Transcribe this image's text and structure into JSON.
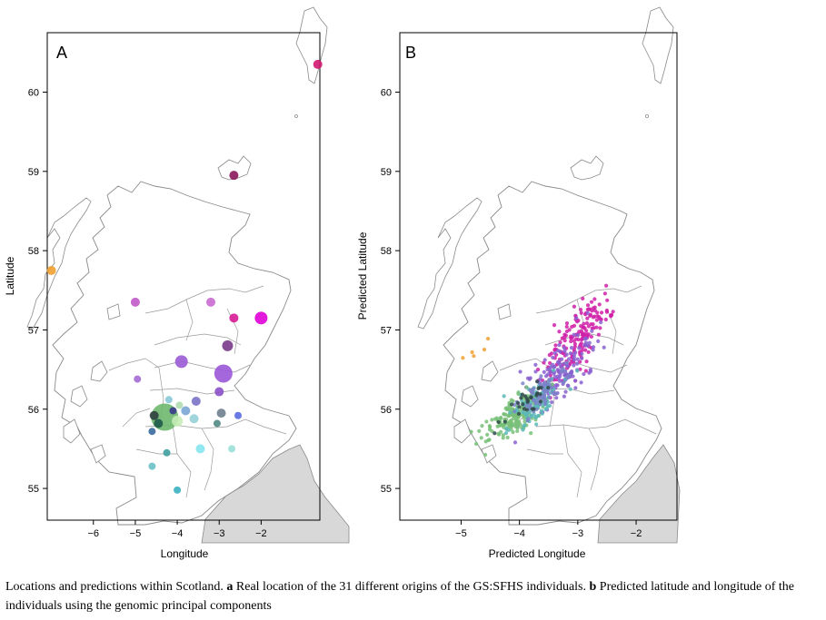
{
  "figure": {
    "panels": [
      {
        "letter": "A",
        "xlabel": "Longitude",
        "ylabel": "Latitude",
        "xticks": [
          "−6",
          "−5",
          "−4",
          "−3",
          "−2"
        ],
        "yticks": [
          "55",
          "56",
          "57",
          "58",
          "59",
          "60"
        ]
      },
      {
        "letter": "B",
        "xlabel": "Predicted Longitude",
        "ylabel": "Predicted Latitude",
        "xticks": [
          "−5",
          "−4",
          "−3",
          "−2"
        ],
        "yticks": [
          "55",
          "56",
          "57",
          "58",
          "59",
          "60"
        ]
      }
    ]
  },
  "caption": {
    "text1": "Locations and predictions within Scotland.",
    "bold_a": "a",
    "text2": "Real location of the 31 different origins of the GS:SFHS individuals.",
    "bold_b": "b",
    "text3": "Predicted latitude and longitude of the individuals using the genomic principal components"
  },
  "chart_data": [
    {
      "type": "scatter",
      "panel": "A",
      "xlabel": "Longitude",
      "ylabel": "Latitude",
      "xlim": [
        -7.1,
        -0.6
      ],
      "ylim": [
        54.6,
        60.75
      ],
      "points": [
        {
          "x": -7.0,
          "y": 57.75,
          "r": 5,
          "color": "#f0a030"
        },
        {
          "x": -0.65,
          "y": 60.35,
          "r": 5,
          "color": "#d01870"
        },
        {
          "x": -2.65,
          "y": 58.95,
          "r": 5,
          "color": "#8a1a5a"
        },
        {
          "x": -5.0,
          "y": 57.35,
          "r": 5,
          "color": "#c05ac8"
        },
        {
          "x": -3.2,
          "y": 57.35,
          "r": 5,
          "color": "#c86ad0"
        },
        {
          "x": -2.65,
          "y": 57.15,
          "r": 5,
          "color": "#d81c96"
        },
        {
          "x": -2.0,
          "y": 57.15,
          "r": 7,
          "color": "#e000d8"
        },
        {
          "x": -2.8,
          "y": 56.8,
          "r": 6,
          "color": "#7a3a8a"
        },
        {
          "x": -3.9,
          "y": 56.6,
          "r": 7,
          "color": "#9a5ad6"
        },
        {
          "x": -2.9,
          "y": 56.45,
          "r": 10,
          "color": "#9a58d8"
        },
        {
          "x": -4.95,
          "y": 56.38,
          "r": 4,
          "color": "#a46ad2"
        },
        {
          "x": -3.0,
          "y": 56.22,
          "r": 5,
          "color": "#8a50c8"
        },
        {
          "x": -4.2,
          "y": 56.12,
          "r": 4,
          "color": "#88c8d8"
        },
        {
          "x": -3.55,
          "y": 56.1,
          "r": 5,
          "color": "#7a72c8"
        },
        {
          "x": -4.3,
          "y": 55.9,
          "r": 15,
          "color": "#6eb86e"
        },
        {
          "x": -4.55,
          "y": 55.92,
          "r": 5,
          "color": "#2f3f3f"
        },
        {
          "x": -4.45,
          "y": 55.82,
          "r": 5,
          "color": "#1f5a4a"
        },
        {
          "x": -4.0,
          "y": 55.85,
          "r": 6,
          "color": "#c6ecb6"
        },
        {
          "x": -3.8,
          "y": 55.98,
          "r": 5,
          "color": "#7aa6d6"
        },
        {
          "x": -3.6,
          "y": 55.88,
          "r": 5,
          "color": "#96d0d8"
        },
        {
          "x": -3.95,
          "y": 56.05,
          "r": 4,
          "color": "#b0dcb0"
        },
        {
          "x": -4.1,
          "y": 55.98,
          "r": 4,
          "color": "#3a3a8a"
        },
        {
          "x": -2.95,
          "y": 55.95,
          "r": 5,
          "color": "#707e8e"
        },
        {
          "x": -3.05,
          "y": 55.82,
          "r": 4,
          "color": "#528a84"
        },
        {
          "x": -2.55,
          "y": 55.92,
          "r": 4,
          "color": "#5a6ae0"
        },
        {
          "x": -4.6,
          "y": 55.72,
          "r": 4,
          "color": "#3a6aa0"
        },
        {
          "x": -4.25,
          "y": 55.45,
          "r": 4,
          "color": "#40a0a0"
        },
        {
          "x": -3.45,
          "y": 55.5,
          "r": 5,
          "color": "#86e6f0"
        },
        {
          "x": -2.7,
          "y": 55.5,
          "r": 4,
          "color": "#9ae0d8"
        },
        {
          "x": -4.6,
          "y": 55.28,
          "r": 4,
          "color": "#6ac0c8"
        },
        {
          "x": -4.0,
          "y": 54.98,
          "r": 4,
          "color": "#3ab0c0"
        }
      ]
    },
    {
      "type": "scatter",
      "panel": "B",
      "xlabel": "Predicted Longitude",
      "ylabel": "Predicted Latitude",
      "xlim": [
        -6.05,
        -1.3
      ],
      "ylim": [
        54.6,
        60.75
      ],
      "groups": [
        {
          "color": "#d020a8",
          "center": [
            -3.0,
            56.9
          ],
          "spread": [
            0.35,
            0.38
          ],
          "n": 170
        },
        {
          "color": "#8860d0",
          "center": [
            -3.3,
            56.45
          ],
          "spread": [
            0.35,
            0.3
          ],
          "n": 150
        },
        {
          "color": "#78c078",
          "center": [
            -4.05,
            55.95
          ],
          "spread": [
            0.3,
            0.22
          ],
          "n": 190
        },
        {
          "color": "#5ab8b8",
          "center": [
            -3.75,
            56.05
          ],
          "spread": [
            0.28,
            0.2
          ],
          "n": 90
        },
        {
          "color": "#7a84c8",
          "center": [
            -3.6,
            56.2
          ],
          "spread": [
            0.3,
            0.22
          ],
          "n": 70
        },
        {
          "color": "#2f4a4a",
          "center": [
            -3.9,
            56.1
          ],
          "spread": [
            0.25,
            0.18
          ],
          "n": 30
        },
        {
          "color": "#f0a030",
          "center": [
            -4.6,
            56.75
          ],
          "spread": [
            0.2,
            0.12
          ],
          "n": 5
        }
      ]
    }
  ],
  "colors": {
    "land_fill": "#ffffff",
    "land_stroke": "#8a8a8a",
    "england_fill": "#d8d8d8",
    "axis": "#000000"
  }
}
